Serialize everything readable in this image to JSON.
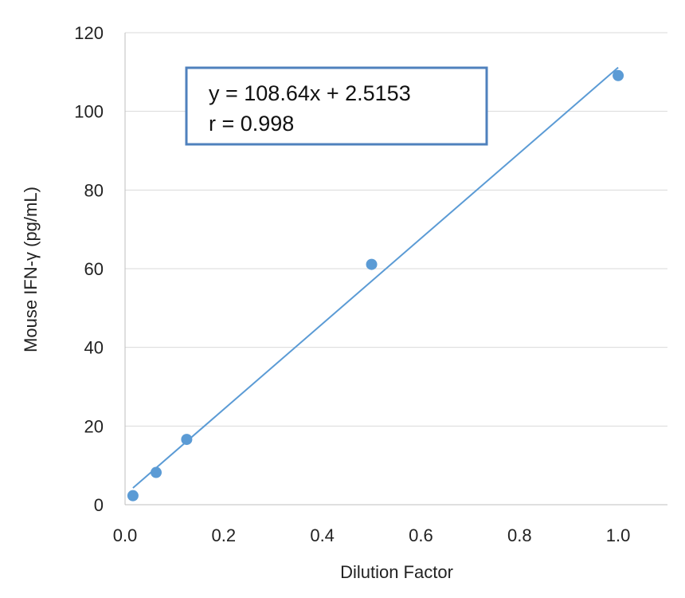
{
  "chart_data": {
    "type": "scatter",
    "xlabel": "Dilution Factor",
    "ylabel": "Mouse IFN-γ (pg/mL)",
    "xlim": [
      0,
      1.1
    ],
    "ylim": [
      0,
      120
    ],
    "x_ticks": [
      "0.0",
      "0.2",
      "0.4",
      "0.6",
      "0.8",
      "1.0"
    ],
    "x_tick_values": [
      0,
      0.2,
      0.4,
      0.6,
      0.8,
      1.0
    ],
    "y_ticks": [
      "0",
      "20",
      "40",
      "60",
      "80",
      "100",
      "120"
    ],
    "y_tick_values": [
      0,
      20,
      40,
      60,
      80,
      100,
      120
    ],
    "grid": "horizontal",
    "legend": "none",
    "series": [
      {
        "points": [
          {
            "x": 0.016,
            "y": 2.3
          },
          {
            "x": 0.063,
            "y": 8.2
          },
          {
            "x": 0.125,
            "y": 16.6
          },
          {
            "x": 0.5,
            "y": 61.1
          },
          {
            "x": 1.0,
            "y": 109.1
          }
        ],
        "color": "#5b9bd5"
      }
    ],
    "trendline": {
      "slope": 108.64,
      "intercept": 2.5153,
      "x_range": [
        0.016,
        1.0
      ],
      "color": "#5b9bd5"
    },
    "annotation": {
      "equation": "y = 108.64x + 2.5153",
      "r_value": "r = 0.998",
      "border_color": "#4f81bd"
    },
    "colors": {
      "gridline": "#d9d9d9",
      "axis": "#bfbfbf",
      "marker": "#5b9bd5"
    }
  }
}
